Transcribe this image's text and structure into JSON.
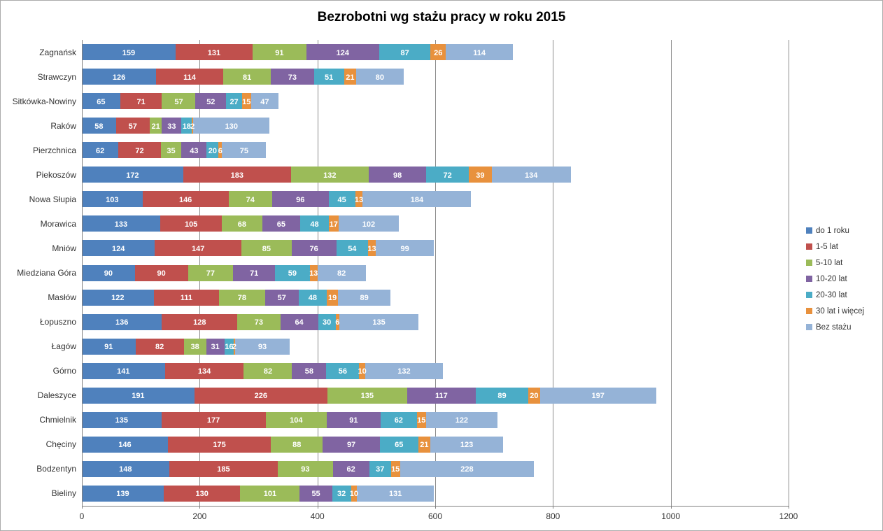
{
  "chart_data": {
    "type": "bar",
    "orientation": "horizontal-stacked",
    "title": "Bezrobotni wg stażu pracy w roku 2015",
    "categories": [
      "Zagnańsk",
      "Strawczyn",
      "Sitkówka-Nowiny",
      "Raków",
      "Pierzchnica",
      "Piekoszów",
      "Nowa Słupia",
      "Morawica",
      "Mniów",
      "Miedziana Góra",
      "Masłów",
      "Łopuszno",
      "Łagów",
      "Górno",
      "Daleszyce",
      "Chmielnik",
      "Chęciny",
      "Bodzentyn",
      "Bieliny"
    ],
    "series": [
      {
        "name": "do 1 roku",
        "color": "#4F81BD",
        "values": [
          159,
          126,
          65,
          58,
          62,
          172,
          103,
          133,
          124,
          90,
          122,
          136,
          91,
          141,
          191,
          135,
          146,
          148,
          139
        ]
      },
      {
        "name": "1-5 lat",
        "color": "#C0504D",
        "values": [
          131,
          114,
          71,
          57,
          72,
          183,
          146,
          105,
          147,
          90,
          111,
          128,
          82,
          134,
          226,
          177,
          175,
          185,
          130
        ]
      },
      {
        "name": "5-10 lat",
        "color": "#9BBB59",
        "values": [
          91,
          81,
          57,
          21,
          35,
          132,
          74,
          68,
          85,
          77,
          78,
          73,
          38,
          82,
          135,
          104,
          88,
          93,
          101
        ]
      },
      {
        "name": "10-20 lat",
        "color": "#8064A2",
        "values": [
          124,
          73,
          52,
          33,
          43,
          98,
          96,
          65,
          76,
          71,
          57,
          64,
          31,
          58,
          117,
          91,
          97,
          62,
          55
        ]
      },
      {
        "name": "20-30 lat",
        "color": "#4BACC6",
        "values": [
          87,
          51,
          27,
          18,
          20,
          72,
          45,
          48,
          54,
          59,
          48,
          30,
          16,
          56,
          89,
          62,
          65,
          37,
          32
        ]
      },
      {
        "name": "30 lat i więcej",
        "color": "#E8913D",
        "values": [
          26,
          21,
          15,
          2,
          6,
          39,
          13,
          17,
          13,
          13,
          19,
          6,
          2,
          10,
          20,
          15,
          21,
          15,
          10
        ]
      },
      {
        "name": "Bez stażu",
        "color": "#95B3D7",
        "values": [
          114,
          80,
          47,
          130,
          75,
          134,
          184,
          102,
          99,
          82,
          89,
          135,
          93,
          132,
          197,
          122,
          123,
          228,
          131
        ]
      }
    ],
    "x_axis": {
      "min": 0,
      "max": 1200,
      "tick_interval": 200,
      "tick_labels": [
        "0",
        "200",
        "400",
        "600",
        "800",
        "1000",
        "1200"
      ]
    },
    "legend_position": "right",
    "grid": "vertical-major",
    "data_labels": "inside-center-white-bold"
  }
}
